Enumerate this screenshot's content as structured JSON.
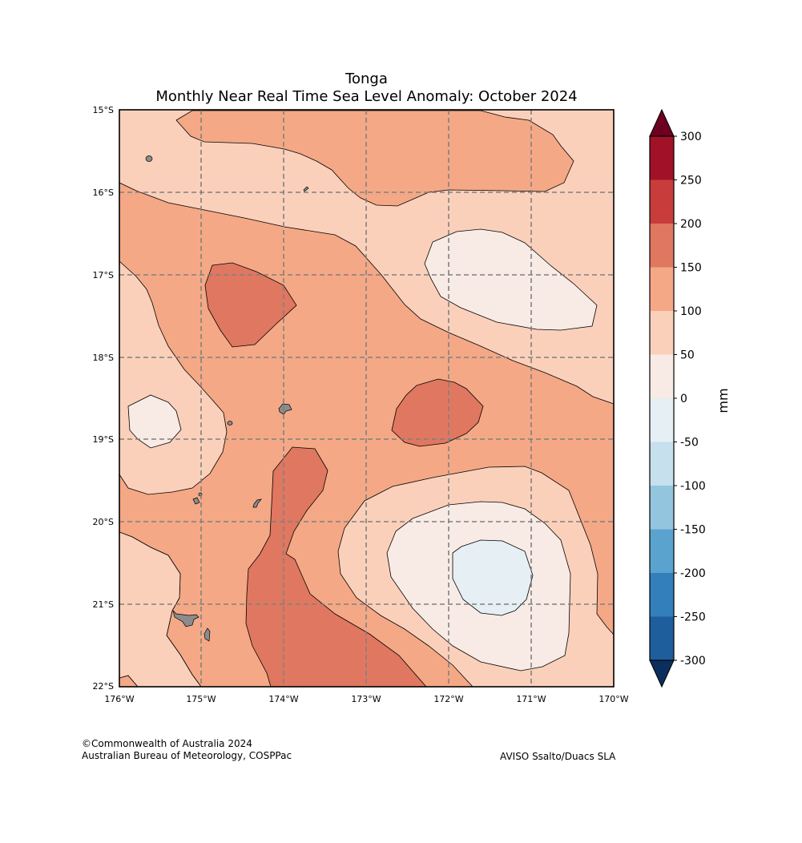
{
  "title": {
    "line1": "Tonga",
    "line2": "Monthly Near Real Time Sea Level Anomaly: October 2024"
  },
  "map": {
    "lat_labels": [
      "15°S",
      "16°S",
      "17°S",
      "18°S",
      "19°S",
      "20°S",
      "21°S",
      "22°S"
    ],
    "lon_labels": [
      "176°W",
      "175°W",
      "174°W",
      "173°W",
      "172°W",
      "171°W",
      "170°W"
    ],
    "lat_range": [
      -22,
      -15
    ],
    "lon_range": [
      -176,
      -170
    ],
    "gridlines": "dashed grey"
  },
  "colorbar": {
    "unit": "mm",
    "tick_labels": [
      "300",
      "250",
      "200",
      "150",
      "100",
      "50",
      "0",
      "-50",
      "-100",
      "-150",
      "-200",
      "-250",
      "-300"
    ],
    "levels": [
      300,
      250,
      200,
      150,
      100,
      50,
      0,
      -50,
      -100,
      -150,
      -200,
      -250,
      -300
    ],
    "extend": "both",
    "colors_top_to_bottom": [
      "#a11228",
      "#c83c3c",
      "#e07760",
      "#f4a886",
      "#fbd0bb",
      "#f8ebe5",
      "#e6eff3",
      "#c6e0ed",
      "#94c5df",
      "#5ba3cf",
      "#337fbc",
      "#1f5e9d"
    ],
    "over_color": "#6d0021",
    "under_color": "#0a2f5e"
  },
  "legend_colors": {
    "land": "#8c8c8c",
    "grid": "#808080"
  },
  "credits": {
    "left_line1": "©Commonwealth of Australia 2024",
    "left_line2": "Australian Bureau of Meteorology, COSPPac",
    "right": "AVISO Ssalto/Duacs SLA"
  }
}
